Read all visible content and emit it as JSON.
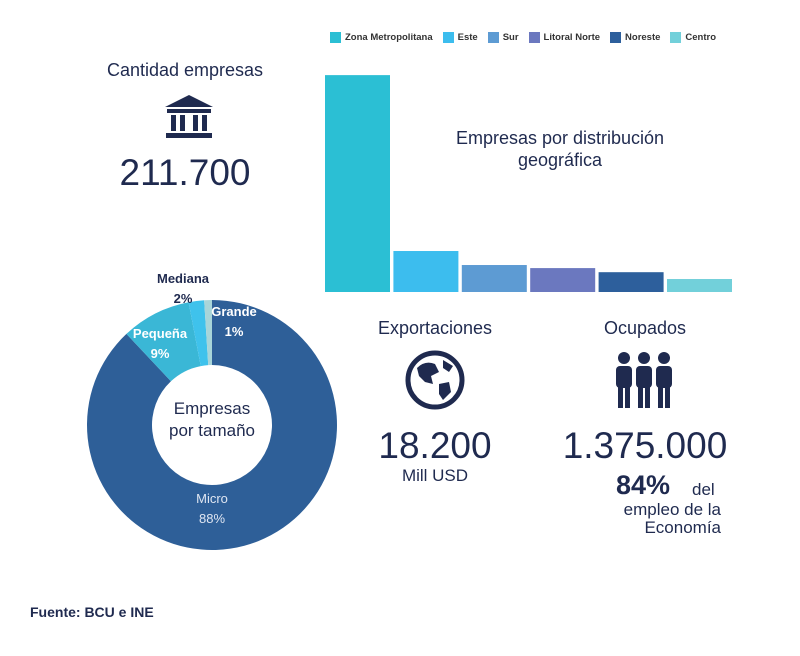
{
  "companies": {
    "label": "Cantidad empresas",
    "value": "211.700",
    "icon": "bank-building-icon"
  },
  "chart_data": [
    {
      "type": "bar",
      "title": "Empresas por distribución geográfica",
      "categories": [
        "Zona Metropolitana",
        "Este",
        "Sur",
        "Litoral Norte",
        "Noreste",
        "Centro"
      ],
      "values": [
        63.5,
        12.0,
        7.9,
        7.0,
        5.8,
        3.8
      ],
      "colors": [
        "#2bbfd4",
        "#3cbdee",
        "#5d9bd3",
        "#6b78bf",
        "#2d5f9c",
        "#72d0da"
      ],
      "legend": "top",
      "ylim": [
        0,
        65
      ]
    },
    {
      "type": "pie",
      "title": "Empresas por tamaño",
      "slices": [
        {
          "name": "Micro",
          "value": 88,
          "label": "88%",
          "color": "#2e5f98"
        },
        {
          "name": "Pequeña",
          "value": 9,
          "label": "9%",
          "color": "#3ab7d6"
        },
        {
          "name": "Mediana",
          "value": 2,
          "label": "2%",
          "color": "#3fc2ec"
        },
        {
          "name": "Grande",
          "value": 1,
          "label": "1%",
          "color": "#a8d5d9"
        }
      ],
      "center_label_1": "Empresas",
      "center_label_2": "por tamaño"
    }
  ],
  "exports": {
    "label": "Exportaciones",
    "value": "18.200",
    "unit": "Mill USD",
    "icon": "globe-icon"
  },
  "employed": {
    "label": "Ocupados",
    "value": "1.375.000",
    "pct": "84%",
    "pct_text1": "del",
    "pct_text2": "empleo de la",
    "pct_text3": "Economía",
    "icon": "people-icon"
  },
  "source": "Fuente: BCU e INE"
}
